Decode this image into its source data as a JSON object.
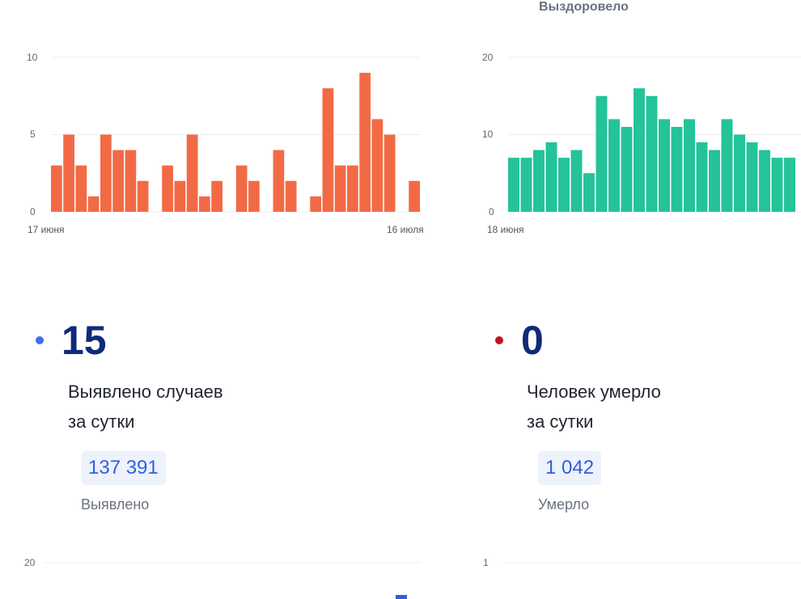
{
  "top_label": "Выздоровело",
  "colors": {
    "left_bars": "#f26a45",
    "right_bars": "#24c39a",
    "grid": "#ececec",
    "tick": "#666666",
    "dot_blue": "#3d6ff0",
    "dot_red": "#c0121b",
    "accent_bar": "#2f5fe0"
  },
  "chart_data": [
    {
      "type": "bar",
      "ylim": [
        0,
        10
      ],
      "yticks": [
        "0",
        "5",
        "10"
      ],
      "xlabel_start": "17 июня",
      "xlabel_end": "16 июля",
      "values": [
        3,
        5,
        3,
        1,
        5,
        4,
        4,
        2,
        0,
        3,
        2,
        5,
        1,
        2,
        0,
        3,
        2,
        0,
        4,
        2,
        0,
        1,
        8,
        3,
        3,
        9,
        6,
        5,
        0,
        2
      ]
    },
    {
      "type": "bar",
      "ylim": [
        0,
        20
      ],
      "yticks": [
        "0",
        "10",
        "20"
      ],
      "xlabel_start": "18 июня",
      "values": [
        7,
        7,
        8,
        9,
        7,
        8,
        5,
        15,
        12,
        11,
        16,
        15,
        12,
        11,
        12,
        9,
        8,
        12,
        10,
        9,
        8,
        7,
        7
      ]
    },
    {
      "type": "bar",
      "ylim": [
        0,
        20
      ],
      "yticks": [
        "20"
      ]
    },
    {
      "type": "bar",
      "ylim": [
        0,
        1
      ],
      "yticks": [
        "1"
      ]
    }
  ],
  "stat_left": {
    "value": "15",
    "desc_line1": "Выявлено случаев",
    "desc_line2": "за сутки",
    "total": "137 391",
    "caption": "Выявлено"
  },
  "stat_right": {
    "value": "0",
    "desc_line1": "Человек умерло",
    "desc_line2": "за сутки",
    "total": "1 042",
    "caption": "Умерло"
  }
}
